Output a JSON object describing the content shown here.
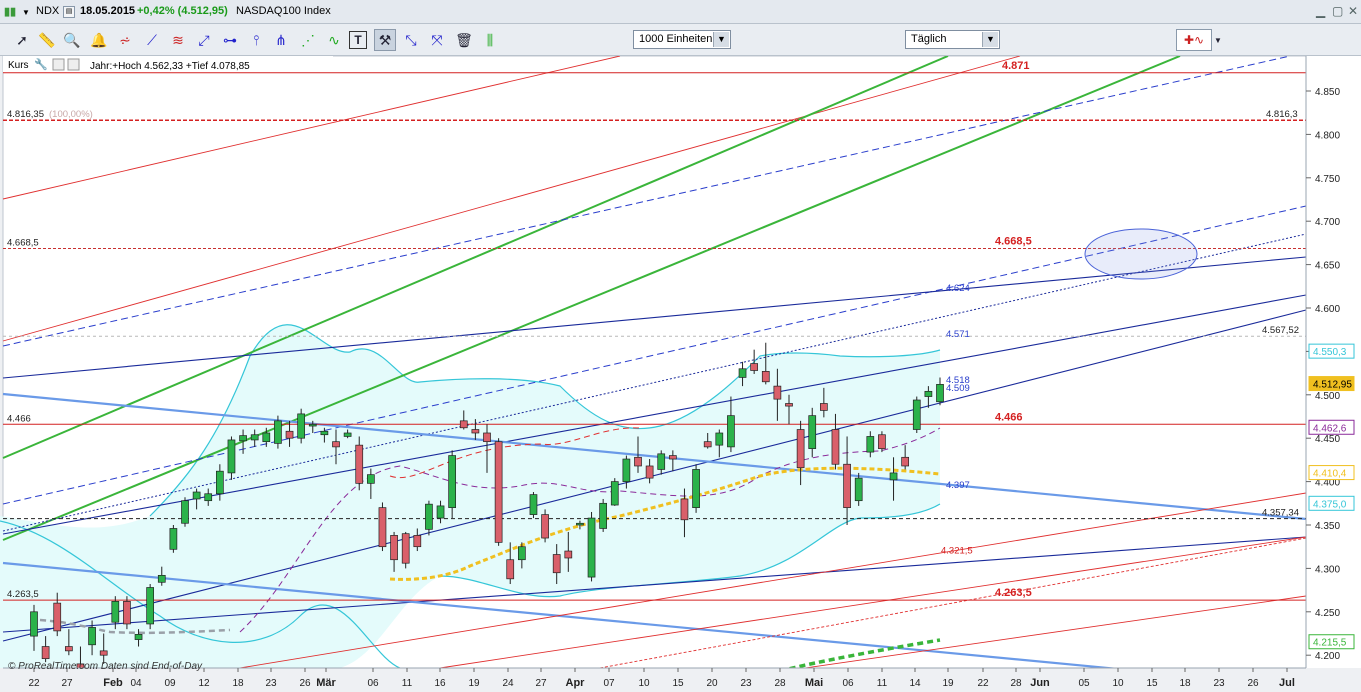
{
  "window": {
    "symbol": "NDX",
    "date": "18.05.2015",
    "change": "+0,42% (4.512,95)",
    "index_name": "NASDAQ100 Index"
  },
  "toolbar": {
    "tools": [
      "select-icon",
      "ruler-icon",
      "zoom-icon",
      "alarm-bell-icon",
      "fibonacci-icon",
      "trendline-icon",
      "parallel-channel-icon",
      "ray-icon",
      "horizontal-line-icon",
      "vertical-line-icon",
      "pitchfork-icon",
      "fan-icon",
      "regression-icon",
      "text-icon",
      "tools-icon",
      "extend-line-icon",
      "arrow-icon",
      "trash-icon",
      "bars-icon"
    ],
    "units_select": "1000 Einheiten",
    "period_select": "Täglich"
  },
  "chart_header": {
    "label": "Kurs",
    "info": "Jahr:+Hoch 4.562,33 +Tief 4.078,85"
  },
  "footer_text": "© ProRealTime.com Daten sind End-of-Day",
  "colors": {
    "bull": "#2bb24a",
    "bear": "#d9606a",
    "bollinger": "#35c6d8",
    "band_fill": "#e4fbfb",
    "green_channel": "#3ab53a",
    "navy": "#1a2a9a",
    "dashed_blue": "#2a3ecc",
    "light_blue": "#6a9ae8",
    "red": "#e03030",
    "ma_orange": "#f0c020",
    "ma_purple": "#8a2a9a"
  },
  "chart_data": {
    "type": "candlestick",
    "ylim": [
      4190,
      4880
    ],
    "y_ticks": [
      "4.850",
      "4.800",
      "4.750",
      "4.700",
      "4.650",
      "4.600",
      "4.550",
      "4.500",
      "4.450",
      "4.400",
      "4.350",
      "4.300",
      "4.250",
      "4.200"
    ],
    "x_labels": [
      "22",
      "27",
      "Feb",
      "04",
      "09",
      "12",
      "18",
      "23",
      "26",
      "Mär",
      "06",
      "11",
      "16",
      "19",
      "24",
      "27",
      "Apr",
      "07",
      "10",
      "15",
      "20",
      "23",
      "28",
      "Mai",
      "06",
      "11",
      "14",
      "19",
      "22",
      "28",
      "Jun",
      "05",
      "10",
      "15",
      "18",
      "23",
      "26",
      "Jul"
    ],
    "horizontal_levels": [
      {
        "value": 4871,
        "label": "4.871"
      },
      {
        "value": 4816.35,
        "label": "4.816,35",
        "pct": "(100,00%)",
        "right_label": "4.816,3"
      },
      {
        "value": 4668.5,
        "label": "4.668,5",
        "center_label": "4.668,5"
      },
      {
        "value": 4567.52,
        "label": "4.567,52"
      },
      {
        "value": 4466,
        "label": "4.466",
        "center_label": "4.466"
      },
      {
        "value": 4357.34,
        "label": "4.357,34"
      },
      {
        "value": 4263.5,
        "label": "4.263,5",
        "center_label": "4.263,5"
      }
    ],
    "annotations": [
      "4.624",
      "4.571",
      "4.518",
      "4.509",
      "4.397",
      "4.321,5"
    ],
    "price_tags": [
      {
        "label": "4.550,3",
        "value": 4550.3,
        "color": "#35c6d8"
      },
      {
        "label": "4.512,95",
        "value": 4512.95,
        "color": "#f0c020"
      },
      {
        "label": "4.462,6",
        "value": 4462.6,
        "color": "#8a2a9a"
      },
      {
        "label": "4.410,4",
        "value": 4410.4,
        "color": "#f0c020"
      },
      {
        "label": "4.375,0",
        "value": 4375.0,
        "color": "#35c6d8"
      },
      {
        "label": "4.215,5",
        "value": 4215.5,
        "color": "#3ab53a"
      }
    ],
    "candles": [
      {
        "o": 4222,
        "h": 4258,
        "l": 4205,
        "c": 4250
      },
      {
        "o": 4210,
        "h": 4222,
        "l": 4192,
        "c": 4196
      },
      {
        "o": 4260,
        "h": 4272,
        "l": 4222,
        "c": 4228
      },
      {
        "o": 4210,
        "h": 4230,
        "l": 4200,
        "c": 4205
      },
      {
        "o": 4190,
        "h": 4210,
        "l": 4170,
        "c": 4180
      },
      {
        "o": 4212,
        "h": 4240,
        "l": 4200,
        "c": 4232
      },
      {
        "o": 4205,
        "h": 4225,
        "l": 4190,
        "c": 4200
      },
      {
        "o": 4238,
        "h": 4268,
        "l": 4230,
        "c": 4262
      },
      {
        "o": 4262,
        "h": 4268,
        "l": 4230,
        "c": 4236
      },
      {
        "o": 4218,
        "h": 4230,
        "l": 4210,
        "c": 4224
      },
      {
        "o": 4236,
        "h": 4282,
        "l": 4230,
        "c": 4278
      },
      {
        "o": 4284,
        "h": 4302,
        "l": 4280,
        "c": 4292
      },
      {
        "o": 4322,
        "h": 4350,
        "l": 4318,
        "c": 4346
      },
      {
        "o": 4352,
        "h": 4382,
        "l": 4348,
        "c": 4378
      },
      {
        "o": 4380,
        "h": 4392,
        "l": 4368,
        "c": 4388
      },
      {
        "o": 4378,
        "h": 4392,
        "l": 4372,
        "c": 4386
      },
      {
        "o": 4386,
        "h": 4420,
        "l": 4378,
        "c": 4412
      },
      {
        "o": 4410,
        "h": 4452,
        "l": 4402,
        "c": 4448
      },
      {
        "o": 4447,
        "h": 4460,
        "l": 4432,
        "c": 4453
      },
      {
        "o": 4448,
        "h": 4460,
        "l": 4440,
        "c": 4454
      },
      {
        "o": 4446,
        "h": 4462,
        "l": 4440,
        "c": 4456
      },
      {
        "o": 4444,
        "h": 4476,
        "l": 4438,
        "c": 4470
      },
      {
        "o": 4458,
        "h": 4470,
        "l": 4440,
        "c": 4450
      },
      {
        "o": 4450,
        "h": 4484,
        "l": 4444,
        "c": 4478
      },
      {
        "o": 4464,
        "h": 4470,
        "l": 4456,
        "c": 4466
      },
      {
        "o": 4454,
        "h": 4462,
        "l": 4445,
        "c": 4458
      },
      {
        "o": 4446,
        "h": 4460,
        "l": 4420,
        "c": 4440
      },
      {
        "o": 4452,
        "h": 4460,
        "l": 4450,
        "c": 4456
      },
      {
        "o": 4442,
        "h": 4452,
        "l": 4390,
        "c": 4398
      },
      {
        "o": 4398,
        "h": 4415,
        "l": 4380,
        "c": 4408
      },
      {
        "o": 4370,
        "h": 4376,
        "l": 4320,
        "c": 4325
      },
      {
        "o": 4338,
        "h": 4342,
        "l": 4296,
        "c": 4310
      },
      {
        "o": 4340,
        "h": 4342,
        "l": 4300,
        "c": 4306
      },
      {
        "o": 4338,
        "h": 4346,
        "l": 4320,
        "c": 4325
      },
      {
        "o": 4345,
        "h": 4378,
        "l": 4338,
        "c": 4374
      },
      {
        "o": 4358,
        "h": 4378,
        "l": 4352,
        "c": 4372
      },
      {
        "o": 4370,
        "h": 4436,
        "l": 4358,
        "c": 4430
      },
      {
        "o": 4470,
        "h": 4482,
        "l": 4460,
        "c": 4462
      },
      {
        "o": 4460,
        "h": 4472,
        "l": 4448,
        "c": 4456
      },
      {
        "o": 4456,
        "h": 4466,
        "l": 4410,
        "c": 4446
      },
      {
        "o": 4446,
        "h": 4450,
        "l": 4326,
        "c": 4330
      },
      {
        "o": 4310,
        "h": 4330,
        "l": 4282,
        "c": 4288
      },
      {
        "o": 4310,
        "h": 4330,
        "l": 4300,
        "c": 4325
      },
      {
        "o": 4362,
        "h": 4388,
        "l": 4358,
        "c": 4385
      },
      {
        "o": 4362,
        "h": 4368,
        "l": 4330,
        "c": 4335
      },
      {
        "o": 4316,
        "h": 4328,
        "l": 4282,
        "c": 4295
      },
      {
        "o": 4320,
        "h": 4342,
        "l": 4296,
        "c": 4312
      },
      {
        "o": 4350,
        "h": 4355,
        "l": 4345,
        "c": 4352
      },
      {
        "o": 4290,
        "h": 4365,
        "l": 4285,
        "c": 4358
      },
      {
        "o": 4346,
        "h": 4380,
        "l": 4342,
        "c": 4375
      },
      {
        "o": 4373,
        "h": 4404,
        "l": 4372,
        "c": 4400
      },
      {
        "o": 4400,
        "h": 4430,
        "l": 4392,
        "c": 4426
      },
      {
        "o": 4428,
        "h": 4452,
        "l": 4410,
        "c": 4418
      },
      {
        "o": 4418,
        "h": 4426,
        "l": 4398,
        "c": 4404
      },
      {
        "o": 4414,
        "h": 4436,
        "l": 4408,
        "c": 4432
      },
      {
        "o": 4430,
        "h": 4436,
        "l": 4412,
        "c": 4426
      },
      {
        "o": 4380,
        "h": 4392,
        "l": 4336,
        "c": 4356
      },
      {
        "o": 4370,
        "h": 4420,
        "l": 4364,
        "c": 4414
      },
      {
        "o": 4446,
        "h": 4456,
        "l": 4438,
        "c": 4440
      },
      {
        "o": 4442,
        "h": 4460,
        "l": 4428,
        "c": 4456
      },
      {
        "o": 4440,
        "h": 4498,
        "l": 4434,
        "c": 4476
      },
      {
        "o": 4520,
        "h": 4538,
        "l": 4510,
        "c": 4530
      },
      {
        "o": 4536,
        "h": 4552,
        "l": 4524,
        "c": 4528
      },
      {
        "o": 4527,
        "h": 4560,
        "l": 4512,
        "c": 4515
      },
      {
        "o": 4510,
        "h": 4530,
        "l": 4470,
        "c": 4495
      },
      {
        "o": 4490,
        "h": 4500,
        "l": 4466,
        "c": 4487
      },
      {
        "o": 4460,
        "h": 4470,
        "l": 4396,
        "c": 4416
      },
      {
        "o": 4438,
        "h": 4485,
        "l": 4428,
        "c": 4476
      },
      {
        "o": 4490,
        "h": 4508,
        "l": 4474,
        "c": 4482
      },
      {
        "o": 4460,
        "h": 4478,
        "l": 4414,
        "c": 4420
      },
      {
        "o": 4420,
        "h": 4452,
        "l": 4350,
        "c": 4370
      },
      {
        "o": 4378,
        "h": 4410,
        "l": 4372,
        "c": 4404
      },
      {
        "o": 4434,
        "h": 4458,
        "l": 4428,
        "c": 4452
      },
      {
        "o": 4454,
        "h": 4458,
        "l": 4434,
        "c": 4438
      },
      {
        "o": 4402,
        "h": 4428,
        "l": 4378,
        "c": 4410
      },
      {
        "o": 4428,
        "h": 4442,
        "l": 4414,
        "c": 4418
      },
      {
        "o": 4460,
        "h": 4498,
        "l": 4456,
        "c": 4494
      },
      {
        "o": 4498,
        "h": 4510,
        "l": 4485,
        "c": 4504
      },
      {
        "o": 4492,
        "h": 4520,
        "l": 4488,
        "c": 4512
      }
    ]
  }
}
